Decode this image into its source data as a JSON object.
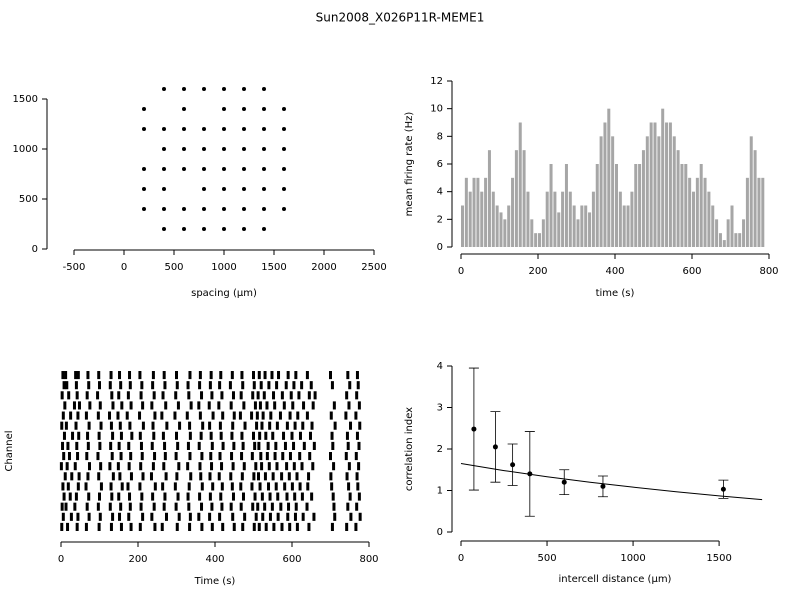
{
  "title": "Sun2008_X026P11R-MEME1",
  "chart_data": [
    {
      "type": "scatter",
      "x_label": "spacing (μm)",
      "color": "#000000",
      "x": [
        400,
        600,
        800,
        1000,
        1200,
        1400,
        200,
        600,
        1000,
        1200,
        1400,
        1600,
        200,
        400,
        600,
        800,
        1000,
        1200,
        1400,
        1600,
        400,
        600,
        800,
        1000,
        1200,
        1400,
        1600,
        200,
        400,
        600,
        800,
        1000,
        1200,
        1400,
        1600,
        200,
        400,
        800,
        1000,
        1200,
        1400,
        1600,
        200,
        400,
        600,
        800,
        1000,
        1200,
        1400,
        1600,
        400,
        600,
        800,
        1000,
        1200,
        1400
      ],
      "values": [
        1600,
        1600,
        1600,
        1600,
        1600,
        1600,
        1400,
        1400,
        1400,
        1400,
        1400,
        1400,
        1200,
        1200,
        1200,
        1200,
        1200,
        1200,
        1200,
        1200,
        1000,
        1000,
        1000,
        1000,
        1000,
        1000,
        1000,
        800,
        800,
        800,
        800,
        800,
        800,
        800,
        800,
        600,
        600,
        600,
        600,
        600,
        600,
        600,
        400,
        400,
        400,
        400,
        400,
        400,
        400,
        400,
        200,
        200,
        200,
        200,
        200,
        200
      ],
      "xlim": [
        -500,
        2500
      ],
      "xticks": [
        -500,
        0,
        500,
        1000,
        1500,
        2000,
        2500
      ],
      "ylim": [
        0,
        1600
      ],
      "yticks": [
        0,
        500,
        1000,
        1500
      ]
    },
    {
      "type": "bar",
      "x_label": "time (s)",
      "y_label": "mean firing rate (Hz)",
      "color": "#a6a6a6",
      "x": [
        0,
        10,
        20,
        30,
        40,
        50,
        60,
        70,
        80,
        90,
        100,
        110,
        120,
        130,
        140,
        150,
        160,
        170,
        180,
        190,
        200,
        210,
        220,
        230,
        240,
        250,
        260,
        270,
        280,
        290,
        300,
        310,
        320,
        330,
        340,
        350,
        360,
        370,
        380,
        390,
        400,
        410,
        420,
        430,
        440,
        450,
        460,
        470,
        480,
        490,
        500,
        510,
        520,
        530,
        540,
        550,
        560,
        570,
        580,
        590,
        600,
        610,
        620,
        630,
        640,
        650,
        660,
        670,
        680,
        690,
        700,
        710,
        720,
        730,
        740,
        750,
        760,
        770,
        780
      ],
      "values": [
        3,
        5,
        4,
        5,
        5,
        4,
        5,
        7,
        4,
        3,
        2.5,
        2,
        3,
        5,
        7,
        9,
        7,
        4,
        2,
        1,
        1,
        2,
        4,
        6,
        4,
        2.5,
        4,
        6,
        4,
        3,
        2,
        3,
        3,
        2.5,
        4,
        6,
        8,
        9,
        10,
        8,
        6,
        4,
        3,
        3,
        4,
        6,
        6,
        7,
        8,
        9,
        9,
        8,
        10,
        9,
        9,
        8,
        7,
        6,
        6,
        5,
        4,
        5,
        6,
        5,
        4,
        3,
        2,
        1,
        0.5,
        2,
        3,
        1,
        1,
        2,
        5,
        8,
        7,
        5,
        5
      ],
      "xlim": [
        0,
        800
      ],
      "xticks": [
        0,
        200,
        400,
        600,
        800
      ],
      "ylim": [
        0,
        12
      ],
      "yticks": [
        0,
        2,
        4,
        6,
        8,
        10,
        12
      ]
    },
    {
      "type": "raster",
      "x_label": "Time (s)",
      "y_label": "Channel",
      "color": "#000000",
      "xlim": [
        0,
        800
      ],
      "xticks": [
        0,
        200,
        400,
        600,
        800
      ],
      "spike_times": [
        [
          5,
          12,
          38,
          45,
          70,
          98,
          130,
          152,
          178,
          205,
          240,
          268,
          300,
          335,
          362,
          390,
          415,
          445,
          470,
          500,
          515,
          530,
          548,
          565,
          590,
          610,
          640,
          700,
          745,
          770
        ],
        [
          8,
          15,
          40,
          72,
          100,
          128,
          155,
          180,
          210,
          238,
          270,
          302,
          330,
          360,
          388,
          412,
          440,
          472,
          502,
          520,
          540,
          560,
          585,
          605,
          625,
          650,
          705,
          750,
          772
        ],
        [
          3,
          20,
          42,
          68,
          95,
          132,
          150,
          175,
          208,
          242,
          265,
          298,
          332,
          365,
          392,
          418,
          448,
          468,
          498,
          512,
          528,
          552,
          575,
          598,
          618,
          645,
          660,
          742,
          768
        ],
        [
          10,
          35,
          48,
          75,
          102,
          135,
          158,
          182,
          212,
          236,
          272,
          305,
          338,
          358,
          385,
          410,
          442,
          475,
          505,
          518,
          535,
          555,
          580,
          602,
          630,
          655,
          710,
          748,
          775
        ],
        [
          6,
          25,
          44,
          66,
          97,
          126,
          148,
          172,
          204,
          244,
          262,
          296,
          328,
          362,
          395,
          420,
          450,
          466,
          495,
          510,
          525,
          545,
          570,
          595,
          615,
          640,
          702,
          740,
          766
        ],
        [
          2,
          14,
          39,
          73,
          104,
          131,
          154,
          179,
          214,
          239,
          275,
          308,
          334,
          368,
          386,
          414,
          446,
          478,
          508,
          522,
          542,
          562,
          588,
          608,
          628,
          652,
          712,
          752,
          776
        ],
        [
          9,
          30,
          46,
          69,
          99,
          134,
          157,
          184,
          206,
          241,
          266,
          300,
          336,
          364,
          390,
          416,
          444,
          470,
          500,
          516,
          532,
          550,
          578,
          600,
          622,
          648,
          704,
          744,
          770
        ],
        [
          4,
          18,
          41,
          71,
          101,
          129,
          151,
          176,
          209,
          237,
          269,
          303,
          331,
          359,
          393,
          421,
          449,
          473,
          503,
          514,
          538,
          558,
          583,
          604,
          632,
          658,
          706,
          746,
          774
        ],
        [
          7,
          22,
          43,
          67,
          96,
          133,
          156,
          181,
          211,
          243,
          271,
          299,
          335,
          366,
          389,
          413,
          443,
          469,
          497,
          519,
          536,
          556,
          576,
          596,
          620,
          646,
          700,
          741,
          767
        ],
        [
          1,
          16,
          37,
          74,
          103,
          127,
          149,
          177,
          207,
          240,
          267,
          306,
          329,
          361,
          391,
          417,
          447,
          476,
          506,
          521,
          541,
          561,
          586,
          606,
          626,
          654,
          708,
          749,
          773
        ],
        [
          11,
          28,
          47,
          70,
          98,
          136,
          153,
          183,
          213,
          235,
          273,
          301,
          337,
          363,
          387,
          411,
          441,
          471,
          501,
          513,
          531,
          551,
          573,
          593,
          613,
          643,
          701,
          743,
          769
        ],
        [
          5,
          19,
          45,
          65,
          105,
          130,
          159,
          174,
          205,
          245,
          264,
          297,
          333,
          367,
          394,
          419,
          445,
          467,
          496,
          517,
          539,
          559,
          581,
          601,
          621,
          641,
          703,
          747,
          771
        ],
        [
          8,
          24,
          40,
          72,
          100,
          132,
          150,
          178,
          210,
          238,
          270,
          304,
          330,
          360,
          388,
          415,
          448,
          474,
          504,
          523,
          543,
          563,
          587,
          607,
          627,
          651,
          707,
          751,
          775
        ],
        [
          3,
          13,
          36,
          68,
          97,
          128,
          155,
          180,
          208,
          242,
          268,
          299,
          332,
          365,
          392,
          418,
          442,
          468,
          498,
          511,
          529,
          549,
          571,
          591,
          611,
          639,
          709,
          745,
          768
        ],
        [
          6,
          27,
          44,
          73,
          102,
          134,
          152,
          176,
          212,
          236,
          274,
          307,
          336,
          358,
          386,
          412,
          446,
          477,
          507,
          524,
          544,
          564,
          589,
          609,
          629,
          657,
          711,
          753,
          777
        ],
        [
          2,
          17,
          42,
          66,
          99,
          131,
          157,
          182,
          206,
          244,
          263,
          302,
          334,
          366,
          393,
          420,
          450,
          472,
          502,
          515,
          533,
          553,
          574,
          594,
          614,
          644,
          705,
          742,
          766
        ]
      ]
    },
    {
      "type": "scatter",
      "x_label": "intercell distance (μm)",
      "y_label": "correlation index",
      "color": "#000000",
      "x": [
        75,
        200,
        300,
        400,
        600,
        825,
        1525
      ],
      "values": [
        2.48,
        2.05,
        1.62,
        1.4,
        1.2,
        1.1,
        1.03
      ],
      "errors": [
        1.47,
        0.85,
        0.5,
        1.02,
        0.3,
        0.25,
        0.22
      ],
      "fit": {
        "x": [
          0,
          250,
          500,
          750,
          1000,
          1250,
          1500,
          1750
        ],
        "values": [
          1.65,
          1.48,
          1.33,
          1.2,
          1.08,
          0.97,
          0.87,
          0.78
        ]
      },
      "xlim": [
        0,
        1790
      ],
      "xticks": [
        0,
        500,
        1000,
        1500
      ],
      "ylim": [
        0,
        4
      ],
      "yticks": [
        0,
        1,
        2,
        3,
        4
      ]
    }
  ]
}
